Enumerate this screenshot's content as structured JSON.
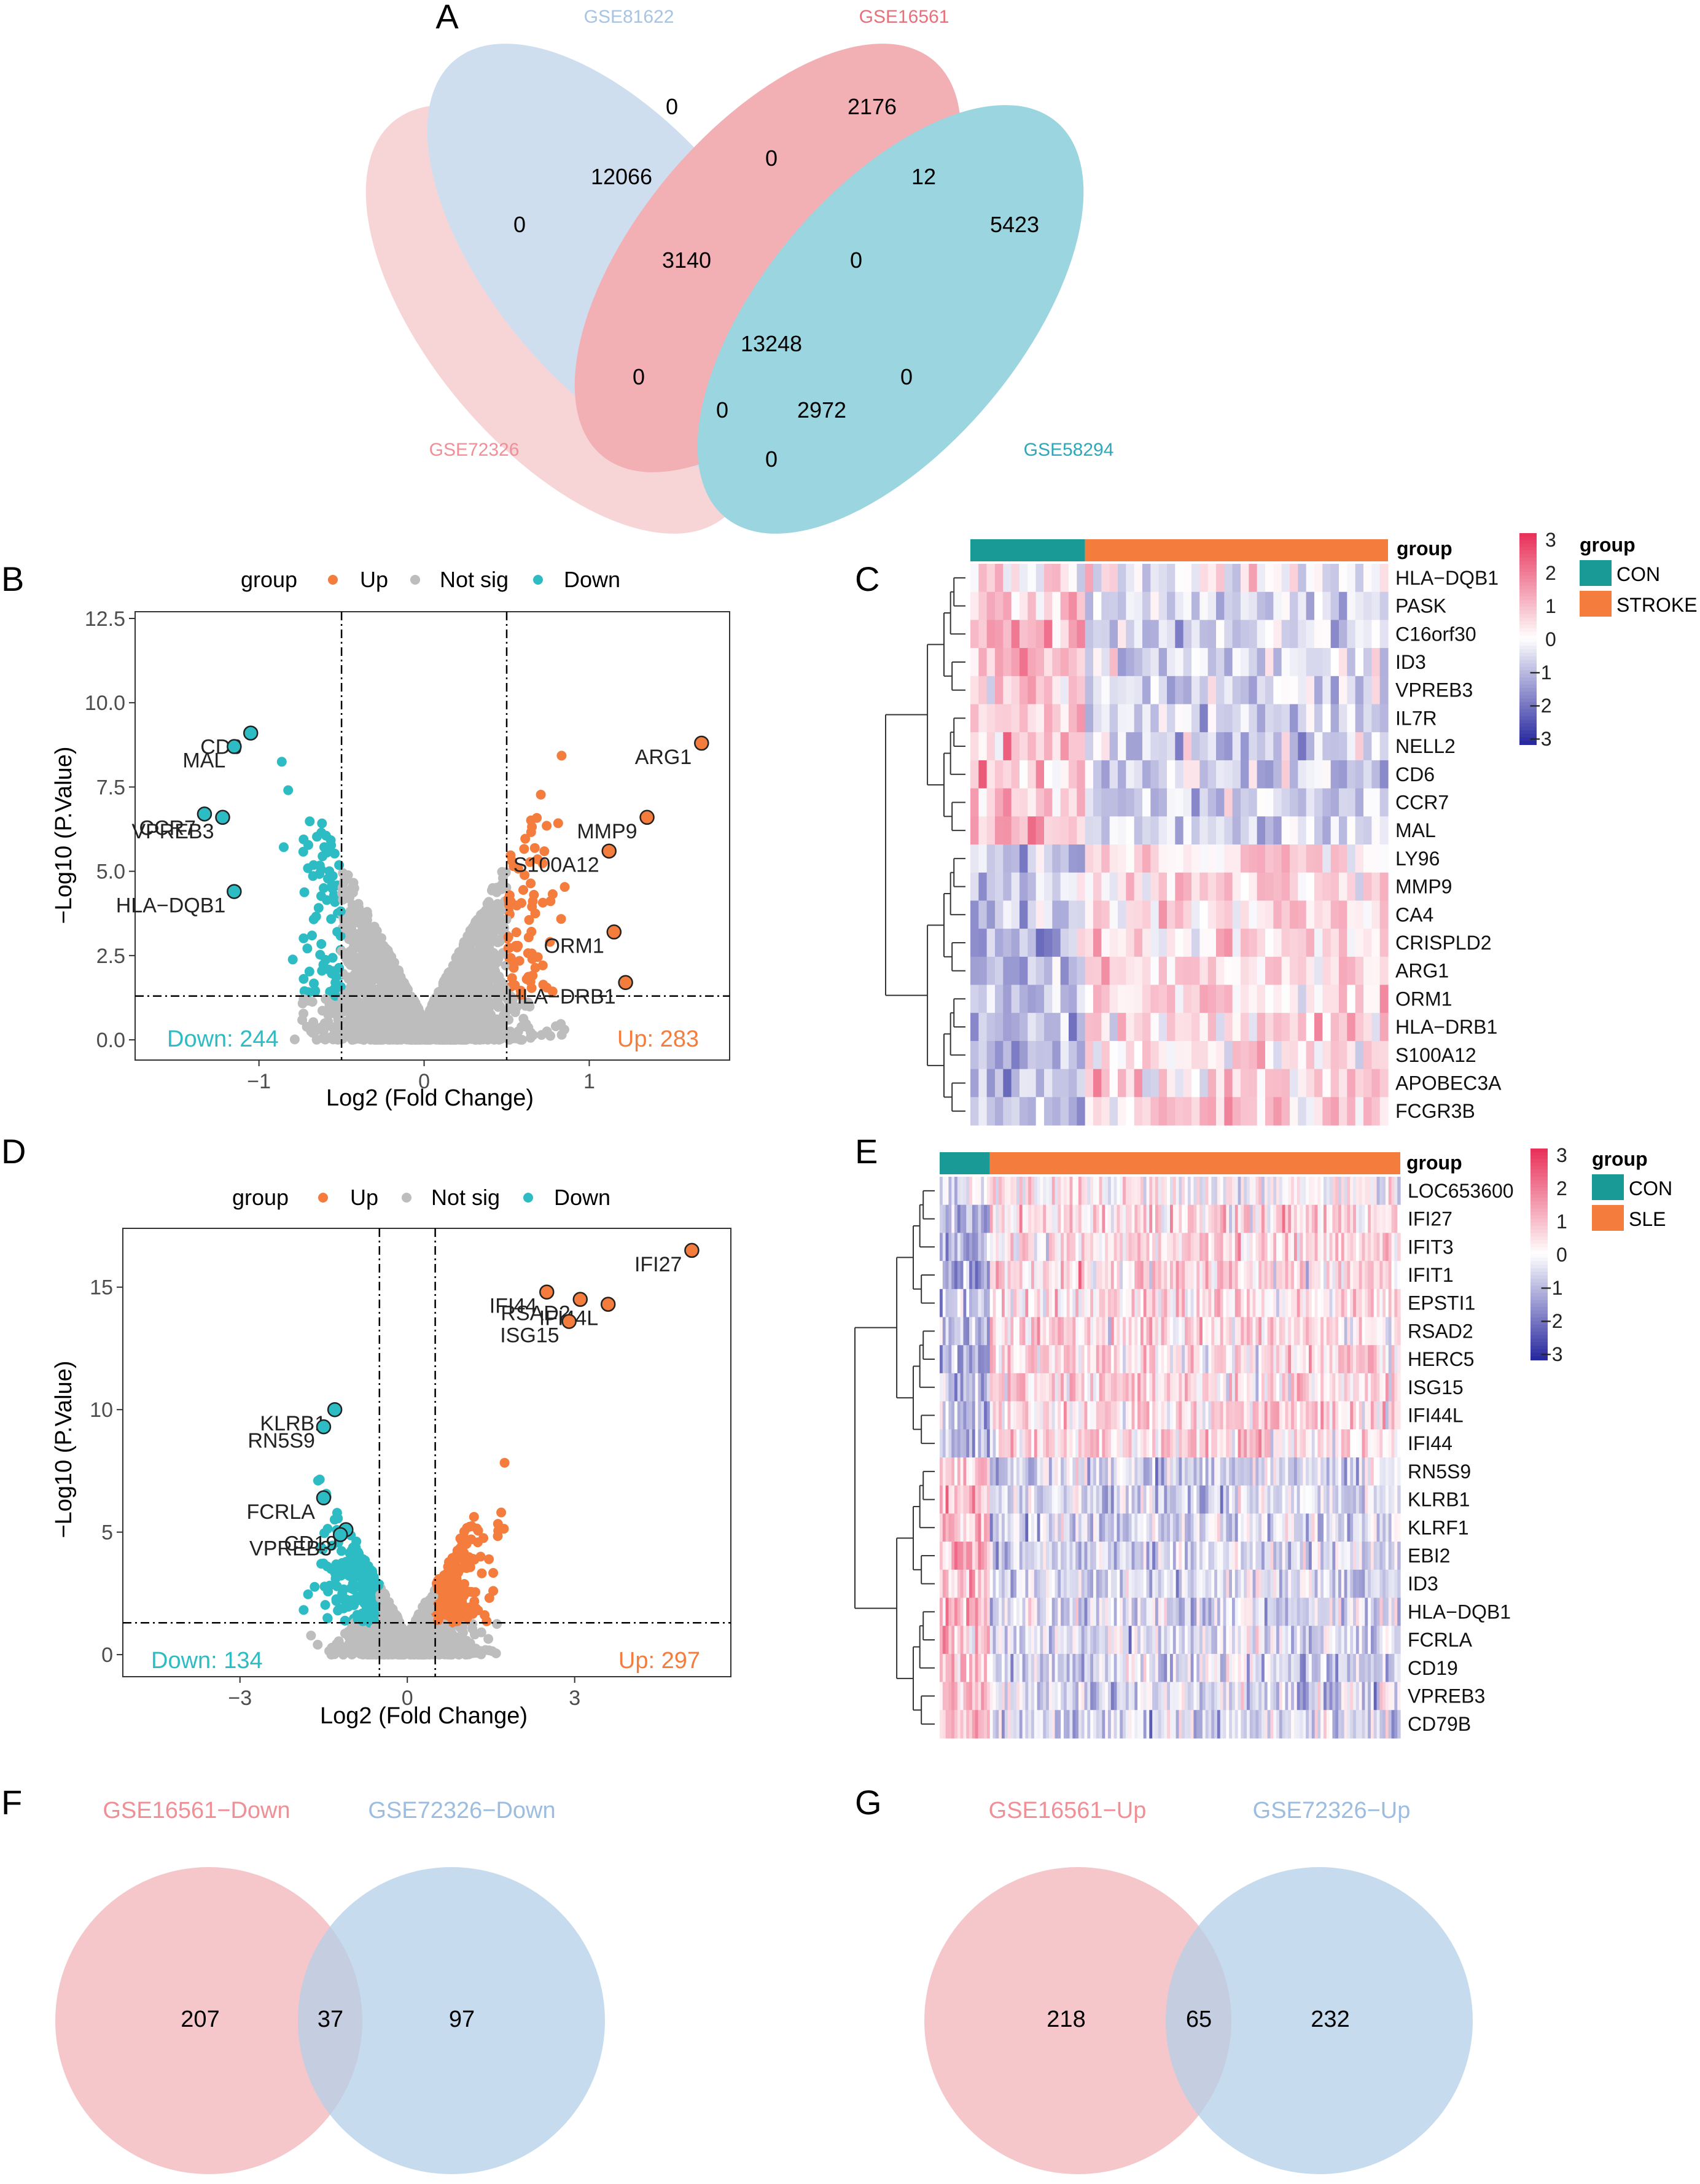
{
  "chart_data": [
    {
      "panel": "A",
      "type": "venn",
      "sets": [
        "GSE81622",
        "GSE16561",
        "GSE72326",
        "GSE58294"
      ],
      "set_colors": [
        "#a7c4e2",
        "#e8707a",
        "#f2b4b8",
        "#4bb3c6"
      ],
      "regions": [
        "0",
        "2176",
        "0",
        "12066",
        "0",
        "12",
        "5423",
        "3140",
        "0",
        "13248",
        "0",
        "0",
        "0",
        "2972",
        "0"
      ]
    },
    {
      "panel": "B",
      "type": "scatter",
      "subtype": "volcano",
      "xlabel": "Log2 (Fold Change)",
      "ylabel": "−Log10 (P.Value)",
      "xlim": [
        -1.75,
        1.85
      ],
      "ylim": [
        -0.6,
        12.7
      ],
      "xticks": [
        "−1",
        "0",
        "1"
      ],
      "xtick_values": [
        -1,
        0,
        1
      ],
      "yticks": [
        "0.0",
        "2.5",
        "5.0",
        "7.5",
        "10.0",
        "12.5"
      ],
      "ytick_values": [
        0,
        2.5,
        5,
        7.5,
        10,
        12.5
      ],
      "thresholds": {
        "x": [
          -0.5,
          0.5
        ],
        "y": 1.3
      },
      "legend": {
        "title": "group",
        "items": [
          "Up",
          "Not sig",
          "Down"
        ],
        "colors": [
          "#f47c3c",
          "#bdbdbd",
          "#2ebcc4"
        ]
      },
      "summary": {
        "down_label": "Down: 244",
        "up_label": "Up: 283"
      },
      "labeled_points": [
        {
          "label": "CD6",
          "x": -1.05,
          "y": 9.1,
          "dir": "down"
        },
        {
          "label": "MAL",
          "x": -1.15,
          "y": 8.7,
          "dir": "down"
        },
        {
          "label": "CCR7",
          "x": -1.33,
          "y": 6.7,
          "dir": "down"
        },
        {
          "label": "VPREB3",
          "x": -1.22,
          "y": 6.6,
          "dir": "down"
        },
        {
          "label": "HLA−DQB1",
          "x": -1.15,
          "y": 4.4,
          "dir": "down"
        },
        {
          "label": "ARG1",
          "x": 1.68,
          "y": 8.8,
          "dir": "up"
        },
        {
          "label": "MMP9",
          "x": 1.35,
          "y": 6.6,
          "dir": "up"
        },
        {
          "label": "S100A12",
          "x": 1.12,
          "y": 5.6,
          "dir": "up"
        },
        {
          "label": "ORM1",
          "x": 1.15,
          "y": 3.2,
          "dir": "up"
        },
        {
          "label": "HLA−DRB1",
          "x": 1.22,
          "y": 1.7,
          "dir": "up"
        }
      ]
    },
    {
      "panel": "C",
      "type": "heatmap",
      "annotation_title": "group",
      "groups": [
        {
          "name": "CON",
          "color": "#1a9a97",
          "n": 14
        },
        {
          "name": "STROKE",
          "color": "#f47c3c",
          "n": 37
        }
      ],
      "rows": [
        "HLA−DQB1",
        "PASK",
        "C16orf30",
        "ID3",
        "VPREB3",
        "IL7R",
        "NELL2",
        "CD6",
        "CCR7",
        "MAL",
        "LY96",
        "MMP9",
        "CA4",
        "CRISPLD2",
        "ARG1",
        "ORM1",
        "HLA−DRB1",
        "S100A12",
        "APOBEC3A",
        "FCGR3B"
      ],
      "row_trend": [
        0,
        1,
        1,
        1,
        1,
        1,
        1,
        1,
        1,
        1,
        -1,
        -1,
        -1,
        -1,
        -1,
        -1,
        -1,
        -1,
        -1,
        -1
      ],
      "color_scale": {
        "min": -3,
        "max": 3,
        "ticks": [
          "3",
          "2",
          "1",
          "0",
          "−1",
          "−2",
          "−3"
        ],
        "low": "#2a2aa0",
        "mid": "#ffffff",
        "high": "#e8325a"
      }
    },
    {
      "panel": "D",
      "type": "scatter",
      "subtype": "volcano",
      "xlabel": "Log2 (Fold Change)",
      "ylabel": "−Log10 (P.Value)",
      "xlim": [
        -5.1,
        5.8
      ],
      "ylim": [
        -0.9,
        17.4
      ],
      "xticks": [
        "−3",
        "0",
        "3"
      ],
      "xtick_values": [
        -3,
        0,
        3
      ],
      "yticks": [
        "0",
        "5",
        "10",
        "15"
      ],
      "ytick_values": [
        0,
        5,
        10,
        15
      ],
      "thresholds": {
        "x": [
          -0.5,
          0.5
        ],
        "y": 1.3
      },
      "legend": {
        "title": "group",
        "items": [
          "Up",
          "Not sig",
          "Down"
        ],
        "colors": [
          "#f47c3c",
          "#bdbdbd",
          "#2ebcc4"
        ]
      },
      "summary": {
        "down_label": "Down: 134",
        "up_label": "Up: 297"
      },
      "labeled_points": [
        {
          "label": "KLRB1",
          "x": -1.3,
          "y": 10.0,
          "dir": "down"
        },
        {
          "label": "RN5S9",
          "x": -1.5,
          "y": 9.3,
          "dir": "down"
        },
        {
          "label": "FCRLA",
          "x": -1.5,
          "y": 6.4,
          "dir": "down"
        },
        {
          "label": "CD19",
          "x": -1.1,
          "y": 5.1,
          "dir": "down"
        },
        {
          "label": "VPREB3",
          "x": -1.2,
          "y": 4.9,
          "dir": "down"
        },
        {
          "label": "IFI27",
          "x": 5.1,
          "y": 16.5,
          "dir": "up"
        },
        {
          "label": "IFI44",
          "x": 2.5,
          "y": 14.8,
          "dir": "up"
        },
        {
          "label": "RSAD2",
          "x": 3.1,
          "y": 14.5,
          "dir": "up"
        },
        {
          "label": "IFI44L",
          "x": 3.6,
          "y": 14.3,
          "dir": "up"
        },
        {
          "label": "ISG15",
          "x": 2.9,
          "y": 13.6,
          "dir": "up"
        }
      ]
    },
    {
      "panel": "E",
      "type": "heatmap",
      "annotation_title": "group",
      "groups": [
        {
          "name": "CON",
          "color": "#1a9a97",
          "n": 17
        },
        {
          "name": "SLE",
          "color": "#f47c3c",
          "n": 139
        }
      ],
      "rows": [
        "LOC653600",
        "IFI27",
        "IFIT3",
        "IFIT1",
        "EPSTI1",
        "RSAD2",
        "HERC5",
        "ISG15",
        "IFI44L",
        "IFI44",
        "RN5S9",
        "KLRB1",
        "KLRF1",
        "EBI2",
        "ID3",
        "HLA−DQB1",
        "FCRLA",
        "CD19",
        "VPREB3",
        "CD79B"
      ],
      "row_trend": [
        -0.3,
        -1,
        -1,
        -1,
        -1,
        -1,
        -1,
        -1,
        -1,
        -1,
        1,
        1,
        1,
        1,
        1,
        1,
        1,
        1,
        1,
        1
      ],
      "color_scale": {
        "min": -3,
        "max": 3,
        "ticks": [
          "3",
          "2",
          "1",
          "0",
          "−1",
          "−2",
          "−3"
        ],
        "low": "#2a2aa0",
        "mid": "#ffffff",
        "high": "#e8325a"
      }
    },
    {
      "panel": "F",
      "type": "venn",
      "sets": [
        "GSE16561−Down",
        "GSE72326−Down"
      ],
      "set_colors": [
        "#f2b4b8",
        "#b4cfe8"
      ],
      "values": [
        "207",
        "37",
        "97"
      ]
    },
    {
      "panel": "G",
      "type": "venn",
      "sets": [
        "GSE16561−Up",
        "GSE72326−Up"
      ],
      "set_colors": [
        "#f2b4b8",
        "#b4cfe8"
      ],
      "values": [
        "218",
        "65",
        "232"
      ]
    }
  ],
  "panel_letters": [
    "A",
    "B",
    "C",
    "D",
    "E",
    "F",
    "G"
  ]
}
